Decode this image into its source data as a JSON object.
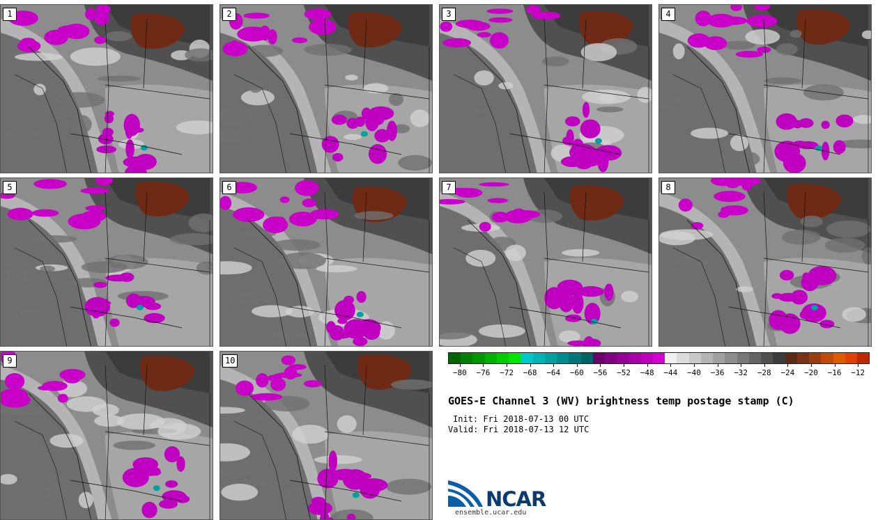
{
  "panels": [
    {
      "label": "1"
    },
    {
      "label": "2"
    },
    {
      "label": "3"
    },
    {
      "label": "4"
    },
    {
      "label": "5"
    },
    {
      "label": "6"
    },
    {
      "label": "7"
    },
    {
      "label": "8"
    },
    {
      "label": "9"
    },
    {
      "label": "10"
    }
  ],
  "colorbar": {
    "colors": [
      "#006400",
      "#007f00",
      "#009800",
      "#00b200",
      "#00cc00",
      "#00e500",
      "#00c8c8",
      "#00b4b4",
      "#00a0a0",
      "#008c8c",
      "#007878",
      "#006464",
      "#6e006e",
      "#820082",
      "#960096",
      "#aa00aa",
      "#be00be",
      "#d200d2",
      "#f0f0f0",
      "#dcdcdc",
      "#c8c8c8",
      "#b4b4b4",
      "#a0a0a0",
      "#8c8c8c",
      "#787878",
      "#646464",
      "#505050",
      "#3c3c3c",
      "#5a2a14",
      "#7a3214",
      "#9a3c10",
      "#c04a0a",
      "#e05a00",
      "#e04000",
      "#c02800"
    ],
    "tick_labels": [
      "−80",
      "−76",
      "−72",
      "−68",
      "−64",
      "−60",
      "−56",
      "−52",
      "−48",
      "−44",
      "−40",
      "−36",
      "−32",
      "−28",
      "−24",
      "−20",
      "−16",
      "−12"
    ]
  },
  "title": "GOES-E Channel 3 (WV) brightness temp postage stamp (C)",
  "init": "Init: Fri 2018-07-13 00 UTC",
  "valid": "Valid: Fri 2018-07-13 12 UTC",
  "logo": {
    "text": "NCAR",
    "url": "ensemble.ucar.edu"
  }
}
